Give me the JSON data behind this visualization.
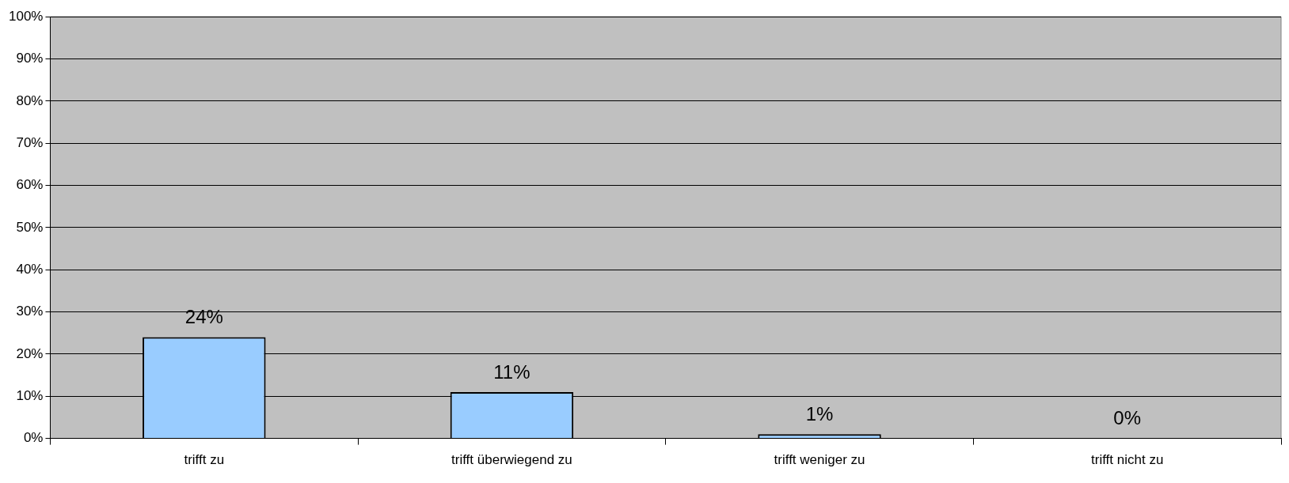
{
  "chart_data": {
    "type": "bar",
    "categories": [
      "trifft zu",
      "trifft überwiegend zu",
      "trifft weniger zu",
      "trifft nicht zu"
    ],
    "values": [
      24,
      11,
      1,
      0
    ],
    "value_labels": [
      "24%",
      "11%",
      "1%",
      "0%"
    ],
    "color": "#99ccff",
    "ylim": [
      0,
      100
    ],
    "yticks": [
      {
        "value": 0,
        "label": "0%"
      },
      {
        "value": 10,
        "label": "10%"
      },
      {
        "value": 20,
        "label": "20%"
      },
      {
        "value": 30,
        "label": "30%"
      },
      {
        "value": 40,
        "label": "40%"
      },
      {
        "value": 50,
        "label": "50%"
      },
      {
        "value": 60,
        "label": "60%"
      },
      {
        "value": 70,
        "label": "70%"
      },
      {
        "value": 80,
        "label": "80%"
      },
      {
        "value": 90,
        "label": "90%"
      },
      {
        "value": 100,
        "label": "100%"
      }
    ],
    "grid": "y",
    "legend": false
  }
}
